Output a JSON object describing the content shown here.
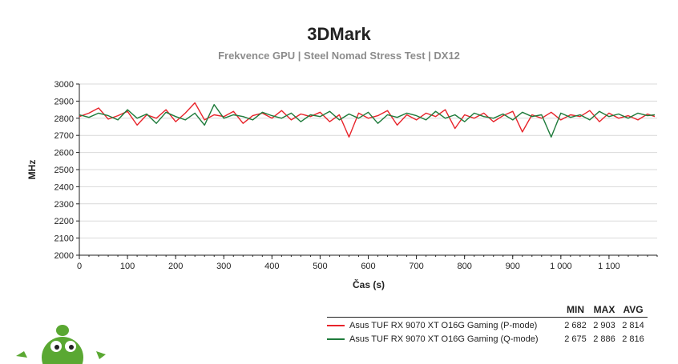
{
  "chart_data": {
    "type": "line",
    "title": "3DMark",
    "subtitle": "Frekvence GPU | Steel Nomad Stress Test | DX12",
    "xlabel": "Čas (s)",
    "ylabel": "MHz",
    "xlim": [
      0,
      1200
    ],
    "ylim": [
      2000,
      3000
    ],
    "x_ticks": [
      0,
      100,
      200,
      300,
      400,
      500,
      600,
      700,
      800,
      900,
      1000,
      1100
    ],
    "x_tick_labels": [
      "0",
      "100",
      "200",
      "300",
      "400",
      "500",
      "600",
      "700",
      "800",
      "900",
      "1 000",
      "1 100"
    ],
    "y_ticks": [
      2000,
      2100,
      2200,
      2300,
      2400,
      2500,
      2600,
      2700,
      2800,
      2900,
      3000
    ],
    "y_tick_labels": [
      "2000",
      "2100",
      "2200",
      "2300",
      "2400",
      "2500",
      "2600",
      "2700",
      "2800",
      "2900",
      "3000"
    ],
    "grid": true,
    "legend_placement": "bottom-right",
    "legend_columns": [
      "MIN",
      "MAX",
      "AVG"
    ],
    "series": [
      {
        "name": "Asus TUF RX 9070 XT O16G Gaming (P-mode)",
        "color": "#e8242b",
        "min": "2 682",
        "max": "2 903",
        "avg": "2 814",
        "x": [
          0,
          20,
          40,
          60,
          80,
          100,
          120,
          140,
          160,
          180,
          200,
          220,
          240,
          260,
          280,
          300,
          320,
          340,
          360,
          380,
          400,
          420,
          440,
          460,
          480,
          500,
          520,
          540,
          560,
          580,
          600,
          620,
          640,
          660,
          680,
          700,
          720,
          740,
          760,
          780,
          800,
          820,
          840,
          860,
          880,
          900,
          920,
          940,
          960,
          980,
          1000,
          1020,
          1040,
          1060,
          1080,
          1100,
          1120,
          1140,
          1160,
          1180,
          1195
        ],
        "values": [
          2810,
          2830,
          2860,
          2795,
          2815,
          2840,
          2760,
          2820,
          2800,
          2850,
          2780,
          2830,
          2890,
          2790,
          2820,
          2810,
          2840,
          2770,
          2815,
          2830,
          2800,
          2845,
          2790,
          2825,
          2810,
          2835,
          2780,
          2820,
          2690,
          2830,
          2800,
          2815,
          2845,
          2760,
          2820,
          2790,
          2830,
          2810,
          2850,
          2740,
          2820,
          2800,
          2830,
          2780,
          2815,
          2840,
          2720,
          2820,
          2800,
          2835,
          2790,
          2820,
          2810,
          2845,
          2780,
          2830,
          2800,
          2815,
          2790,
          2825,
          2810
        ]
      },
      {
        "name": "Asus TUF RX 9070 XT O16G Gaming (Q-mode)",
        "color": "#1e7b3b",
        "min": "2 675",
        "max": "2 886",
        "avg": "2 816",
        "x": [
          0,
          20,
          40,
          60,
          80,
          100,
          120,
          140,
          160,
          180,
          200,
          220,
          240,
          260,
          280,
          300,
          320,
          340,
          360,
          380,
          400,
          420,
          440,
          460,
          480,
          500,
          520,
          540,
          560,
          580,
          600,
          620,
          640,
          660,
          680,
          700,
          720,
          740,
          760,
          780,
          800,
          820,
          840,
          860,
          880,
          900,
          920,
          940,
          960,
          980,
          1000,
          1020,
          1040,
          1060,
          1080,
          1100,
          1120,
          1140,
          1160,
          1180,
          1195
        ],
        "values": [
          2820,
          2805,
          2830,
          2815,
          2790,
          2850,
          2800,
          2825,
          2770,
          2835,
          2810,
          2790,
          2830,
          2760,
          2880,
          2800,
          2820,
          2810,
          2790,
          2835,
          2815,
          2800,
          2830,
          2780,
          2820,
          2810,
          2840,
          2790,
          2825,
          2800,
          2835,
          2770,
          2820,
          2805,
          2830,
          2815,
          2790,
          2840,
          2800,
          2820,
          2780,
          2830,
          2810,
          2800,
          2825,
          2790,
          2835,
          2810,
          2820,
          2690,
          2830,
          2805,
          2820,
          2790,
          2840,
          2810,
          2825,
          2800,
          2830,
          2815,
          2820
        ]
      }
    ]
  }
}
